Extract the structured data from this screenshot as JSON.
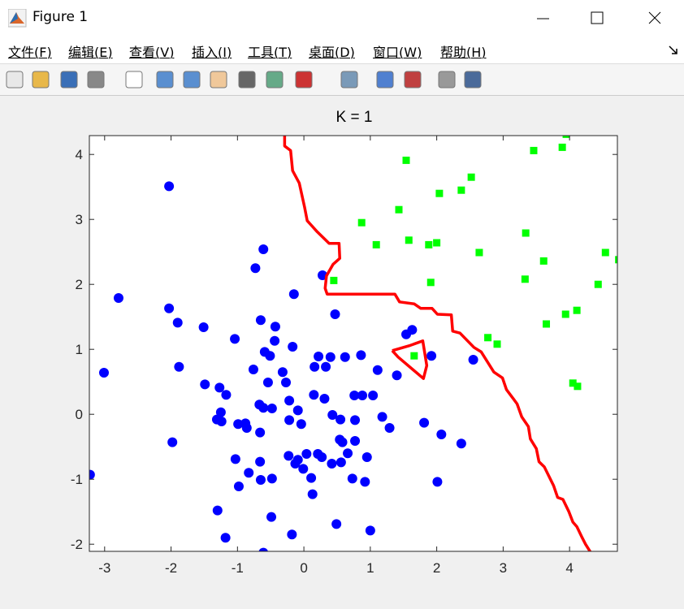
{
  "window": {
    "title": "Figure 1"
  },
  "menu": [
    "文件(F)",
    "编辑(E)",
    "查看(V)",
    "插入(I)",
    "工具(T)",
    "桌面(D)",
    "窗口(W)",
    "帮助(H)"
  ],
  "chart_data": {
    "type": "scatter",
    "title": "K = 1",
    "xlim": [
      -3.23,
      4.72
    ],
    "ylim": [
      -2.11,
      4.29
    ],
    "xticks": [
      -3,
      -2,
      -1,
      0,
      1,
      2,
      3,
      4
    ],
    "yticks": [
      -2,
      -1,
      0,
      1,
      2,
      3,
      4
    ],
    "series": [
      {
        "color": "#0000ff",
        "marker": "circle",
        "x": [
          -2.03,
          -2.79,
          -3.01,
          -3.22,
          -0.61,
          -0.73,
          -0.15,
          0.28,
          -2.03,
          -1.9,
          -1.51,
          0.47,
          -1.04,
          -0.65,
          -0.43,
          -0.44,
          -0.59,
          -0.51,
          -0.17,
          0.22,
          0.4,
          0.62,
          0.86,
          -1.88,
          -0.76,
          -0.32,
          0.16,
          0.33,
          1.11,
          1.4,
          1.54,
          1.63,
          1.92,
          2.55,
          -1.49,
          -1.27,
          -0.54,
          -0.27,
          -1.17,
          -0.22,
          0.15,
          0.31,
          0.76,
          0.88,
          1.04,
          -0.67,
          -0.61,
          -0.48,
          -0.09,
          -1.25,
          0.43,
          0.55,
          0.77,
          1.18,
          -1.31,
          -1.24,
          -0.99,
          -0.88,
          -0.86,
          -0.22,
          -0.04,
          1.29,
          1.81,
          -0.66,
          2.07,
          -1.98,
          2.37,
          -0.23,
          0.04,
          0.21,
          0.27,
          0.54,
          0.58,
          0.77,
          0.66,
          0.95,
          -0.09,
          -1.03,
          -0.66,
          -0.13,
          -0.01,
          0.42,
          0.56,
          -0.83,
          -0.65,
          0.11,
          -0.48,
          0.73,
          0.92,
          2.01,
          -0.98,
          0.13,
          -1.3,
          -0.49,
          0.49,
          1.0,
          -0.18,
          -1.18,
          -0.61
        ],
        "values": [
          3.51,
          1.79,
          0.64,
          -0.93,
          2.54,
          2.25,
          1.85,
          2.14,
          1.63,
          1.41,
          1.34,
          1.54,
          1.16,
          1.45,
          1.35,
          1.13,
          0.96,
          0.9,
          1.04,
          0.89,
          0.88,
          0.88,
          0.91,
          0.73,
          0.69,
          0.65,
          0.73,
          0.73,
          0.68,
          0.6,
          1.23,
          1.3,
          0.9,
          0.84,
          0.46,
          0.41,
          0.49,
          0.49,
          0.3,
          0.21,
          0.3,
          0.24,
          0.29,
          0.29,
          0.29,
          0.15,
          0.1,
          0.09,
          0.06,
          0.03,
          -0.01,
          -0.08,
          -0.09,
          -0.04,
          -0.08,
          -0.11,
          -0.15,
          -0.14,
          -0.21,
          -0.09,
          -0.15,
          -0.21,
          -0.13,
          -0.28,
          -0.31,
          -0.43,
          -0.45,
          -0.64,
          -0.61,
          -0.61,
          -0.66,
          -0.39,
          -0.43,
          -0.41,
          -0.6,
          -0.66,
          -0.7,
          -0.69,
          -0.73,
          -0.76,
          -0.84,
          -0.76,
          -0.74,
          -0.9,
          -1.01,
          -0.98,
          -0.99,
          -0.99,
          -1.04,
          -1.04,
          -1.11,
          -1.23,
          -1.48,
          -1.58,
          -1.69,
          -1.79,
          -1.85,
          -1.9,
          -2.13
        ]
      },
      {
        "color": "#00ff00",
        "marker": "square",
        "x": [
          3.95,
          1.54,
          3.46,
          3.89,
          2.52,
          2.04,
          2.37,
          1.43,
          0.87,
          3.34,
          1.09,
          1.58,
          1.88,
          2.0,
          2.64,
          3.61,
          4.54,
          4.74,
          0.45,
          1.91,
          3.33,
          4.43,
          3.65,
          3.94,
          4.11,
          2.77,
          2.91,
          1.66,
          4.05,
          4.12
        ],
        "values": [
          4.31,
          3.91,
          4.06,
          4.11,
          3.65,
          3.4,
          3.45,
          3.15,
          2.95,
          2.79,
          2.61,
          2.68,
          2.61,
          2.64,
          2.49,
          2.36,
          2.49,
          2.38,
          2.06,
          2.03,
          2.08,
          2.0,
          1.39,
          1.54,
          1.6,
          1.18,
          1.08,
          0.9,
          0.48,
          0.43
        ]
      },
      {
        "color": "#ff0000",
        "marker": "none",
        "line": true,
        "x": [
          -0.29,
          -0.29,
          -0.2,
          -0.17,
          -0.07,
          0.01,
          0.05,
          0.2,
          0.38,
          0.53,
          0.54,
          0.44,
          0.34,
          0.32,
          0.35,
          1.37,
          1.44,
          1.66,
          1.76,
          1.93,
          2.01,
          2.22,
          2.24,
          2.35,
          2.56,
          2.67,
          2.86,
          2.99,
          3.05,
          3.16,
          3.21,
          3.28,
          3.38,
          3.41,
          3.5,
          3.54,
          3.62,
          3.76,
          3.82,
          3.9,
          3.99,
          4.05,
          4.11,
          4.19,
          4.24,
          4.32,
          null,
          1.33,
          1.42,
          1.8,
          1.85,
          1.79,
          1.6,
          1.33
        ],
        "values": [
          4.29,
          4.13,
          4.06,
          3.75,
          3.56,
          3.19,
          2.98,
          2.81,
          2.63,
          2.63,
          2.4,
          2.31,
          2.13,
          1.94,
          1.85,
          1.85,
          1.73,
          1.7,
          1.63,
          1.63,
          1.54,
          1.53,
          1.28,
          1.25,
          1.03,
          0.96,
          0.65,
          0.56,
          0.38,
          0.23,
          0.16,
          -0.04,
          -0.19,
          -0.38,
          -0.53,
          -0.73,
          -0.81,
          -1.1,
          -1.28,
          -1.31,
          -1.5,
          -1.66,
          -1.73,
          -1.9,
          -2.0,
          -2.13,
          null,
          0.98,
          0.88,
          0.55,
          0.75,
          1.13,
          1.06,
          0.98
        ]
      }
    ]
  }
}
